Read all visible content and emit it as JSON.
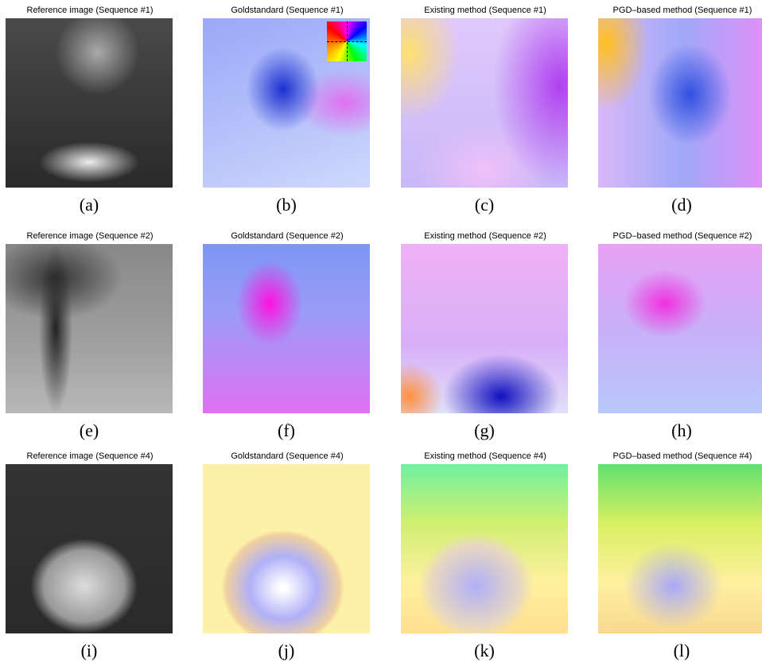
{
  "panels": [
    {
      "title": "Reference image (Sequence #1)",
      "caption": "(a)"
    },
    {
      "title": "Goldstandard (Sequence #1)",
      "caption": "(b)"
    },
    {
      "title": "Existing method (Sequence #1)",
      "caption": "(c)"
    },
    {
      "title": "PGD–based method (Sequence #1)",
      "caption": "(d)"
    },
    {
      "title": "Reference image (Sequence #2)",
      "caption": "(e)"
    },
    {
      "title": "Goldstandard (Sequence #2)",
      "caption": "(f)"
    },
    {
      "title": "Existing method (Sequence #2)",
      "caption": "(g)"
    },
    {
      "title": "PGD–based method (Sequence #2)",
      "caption": "(h)"
    },
    {
      "title": "Reference image (Sequence #4)",
      "caption": "(i)"
    },
    {
      "title": "Goldstandard (Sequence #4)",
      "caption": "(j)"
    },
    {
      "title": "Existing method (Sequence #4)",
      "caption": "(k)"
    },
    {
      "title": "PGD–based method (Sequence #4)",
      "caption": "(l)"
    }
  ]
}
